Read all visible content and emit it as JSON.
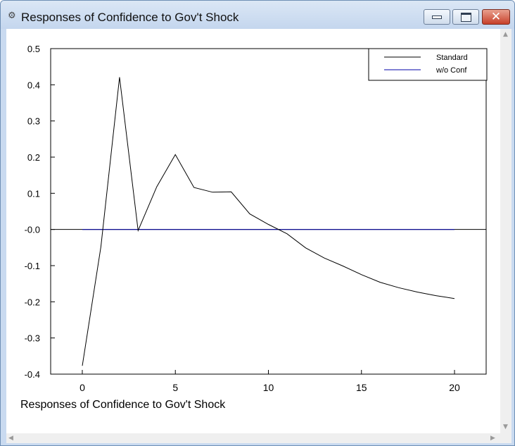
{
  "window": {
    "title": "Responses of Confidence to Gov't Shock",
    "icons": [
      "app-icon",
      "minimize-icon",
      "maximize-icon",
      "close-icon"
    ]
  },
  "chart_data": {
    "type": "line",
    "caption": "Responses of Confidence to Gov't Shock",
    "x": [
      0,
      1,
      2,
      3,
      4,
      5,
      6,
      7,
      8,
      9,
      10,
      11,
      12,
      13,
      14,
      15,
      16,
      17,
      18,
      19,
      20
    ],
    "xlim": [
      -1.7,
      21.7
    ],
    "ylim": [
      -0.4,
      0.5
    ],
    "xticks": [
      0,
      5,
      10,
      15,
      20
    ],
    "xtick_labels": [
      "0",
      "5",
      "10",
      "15",
      "20"
    ],
    "yticks": [
      0.5,
      0.4,
      0.3,
      0.2,
      0.1,
      0.0,
      -0.1,
      -0.2,
      -0.3,
      -0.4
    ],
    "ytick_labels": [
      "0.5",
      "0.4",
      "0.3",
      "0.2",
      "0.1",
      "-0.0",
      "-0.1",
      "-0.2",
      "-0.3",
      "-0.4"
    ],
    "legend_position": "top-right",
    "zero_line": true,
    "series": [
      {
        "name": "Standard",
        "color": "#000000",
        "values": [
          -0.377,
          -0.048,
          0.421,
          -0.003,
          0.118,
          0.207,
          0.116,
          0.103,
          0.104,
          0.043,
          0.014,
          -0.012,
          -0.051,
          -0.079,
          -0.101,
          -0.125,
          -0.146,
          -0.161,
          -0.173,
          -0.183,
          -0.191
        ]
      },
      {
        "name": "w/o Conf",
        "color": "#0000aa",
        "values": [
          0,
          0,
          0,
          0,
          0,
          0,
          0,
          0,
          0,
          0,
          0,
          0,
          0,
          0,
          0,
          0,
          0,
          0,
          0,
          0,
          0
        ]
      }
    ]
  }
}
